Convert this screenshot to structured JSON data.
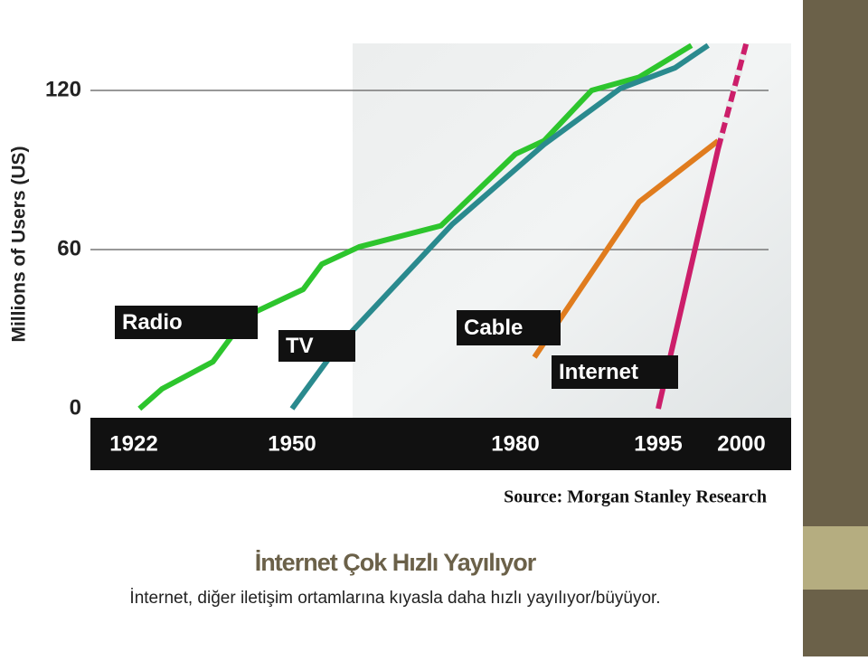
{
  "chart_data": {
    "type": "line",
    "y_label": "Millions of Users (US)",
    "source": "Source: Morgan Stanley Research",
    "xlim": [
      1922,
      2000
    ],
    "xticks": [
      1922,
      1950,
      1980,
      1995,
      2000
    ],
    "ylim": [
      0,
      140
    ],
    "yticks": [
      0,
      60,
      120
    ],
    "grid": true,
    "series": [
      {
        "name": "Radio",
        "color": "#2dc52d",
        "x": [
          1923,
          1927,
          1936,
          1942,
          1951.5,
          1954,
          1959,
          1970,
          1980,
          1983,
          1988,
          1993,
          1997
        ],
        "values": [
          0,
          7.5,
          17.7,
          35,
          45,
          54.5,
          61,
          69,
          96,
          101,
          120,
          125,
          137
        ]
      },
      {
        "name": "TV",
        "color": "#2a8a8e",
        "x": [
          1950,
          1956,
          1971.5,
          1983,
          1991,
          1996,
          1998
        ],
        "values": [
          0,
          23,
          69.5,
          99.6,
          120.7,
          128.5,
          137
        ]
      },
      {
        "name": "Cable",
        "color": "#e07c1e",
        "x": [
          1982,
          1993,
          1998.6
        ],
        "values": [
          19.4,
          78,
          101
        ]
      },
      {
        "name": "Internet",
        "color": "#cc1e6a",
        "x": [
          1995,
          1998.6,
          2000.3
        ],
        "values": [
          0,
          98,
          138
        ],
        "projected_from_index": 1
      }
    ]
  },
  "slide": {
    "title": "İnternet Çok Hızlı Yayılıyor",
    "text": "İnternet, diğer iletişim ortamlarına kıyasla daha hızlı yayılıyor/büyüyor."
  }
}
